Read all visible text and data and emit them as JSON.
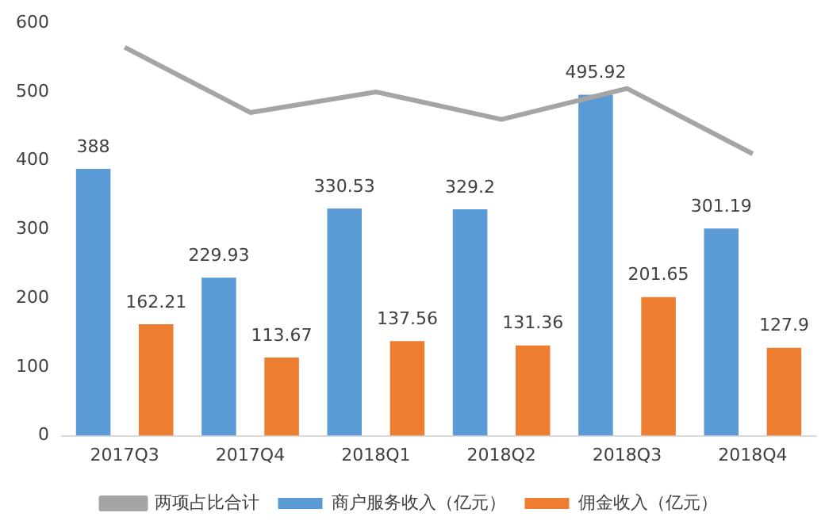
{
  "chart_data": {
    "type": "bar",
    "categories": [
      "2017Q3",
      "2017Q4",
      "2018Q1",
      "2018Q2",
      "2018Q3",
      "2018Q4"
    ],
    "series": [
      {
        "name": "商户服务收入（亿元）",
        "color": "#5b9bd5",
        "values": [
          388,
          229.93,
          330.53,
          329.2,
          495.92,
          301.19
        ],
        "value_labels": [
          "388",
          "229.93",
          "330.53",
          "329.2",
          "495.92",
          "301.19"
        ]
      },
      {
        "name": "佣金收入（亿元）",
        "color": "#ed7d31",
        "values": [
          162.21,
          113.67,
          137.56,
          131.36,
          201.65,
          127.9
        ],
        "value_labels": [
          "162.21",
          "113.67",
          "137.56",
          "131.36",
          "201.65",
          "127.9"
        ]
      },
      {
        "name": "两项占比合计",
        "type": "line",
        "color": "#a5a5a5",
        "values": [
          565,
          470,
          500,
          460,
          505,
          410
        ],
        "marker": "none"
      }
    ],
    "ylim": [
      0,
      600
    ],
    "yticks": [
      0,
      100,
      200,
      300,
      400,
      500,
      600
    ],
    "grid": false,
    "legend": "bottom"
  }
}
